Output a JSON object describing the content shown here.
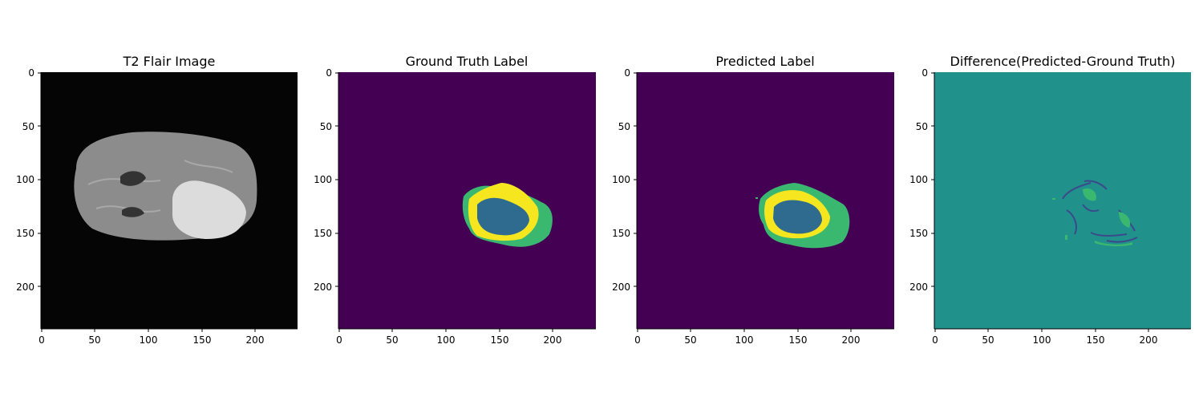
{
  "figure": {
    "panels": [
      {
        "id": "flair",
        "title": "T2 Flair Image",
        "colors": {
          "background": "#050505",
          "brain": "#8c8c8c",
          "lesion": "#dcdcdc",
          "ventricle": "#333333"
        }
      },
      {
        "id": "gt",
        "title": "Ground Truth Label",
        "colors": {
          "background": "#440154",
          "edema": "#3bb870",
          "enhancing": "#f5e61f",
          "necrosis": "#2f6b8f"
        }
      },
      {
        "id": "pred",
        "title": "Predicted Label",
        "colors": {
          "background": "#440154",
          "edema": "#3bb870",
          "enhancing": "#f5e61f",
          "necrosis": "#2f6b8f"
        }
      },
      {
        "id": "diff",
        "title": "Difference(Predicted-Ground Truth)",
        "colors": {
          "background": "#21918c",
          "negative": "#3b4a8a",
          "positive": "#3bb870"
        }
      }
    ],
    "axes": {
      "x_ticks": [
        "0",
        "50",
        "100",
        "150",
        "200"
      ],
      "y_ticks": [
        "0",
        "50",
        "100",
        "150",
        "200"
      ],
      "x_range": [
        0,
        240
      ],
      "y_range": [
        0,
        240
      ]
    }
  }
}
